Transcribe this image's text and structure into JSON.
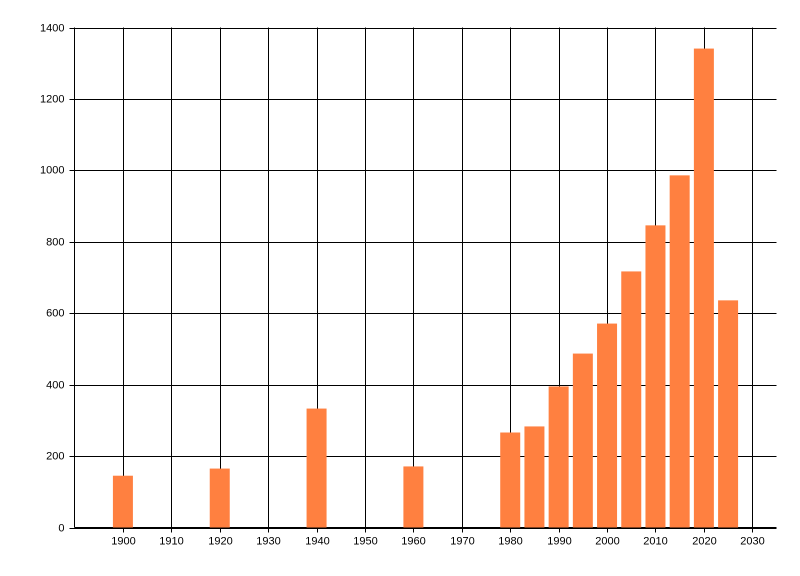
{
  "chart_data": {
    "type": "bar",
    "x": [
      1900,
      1920,
      1940,
      1960,
      1980,
      1985,
      1990,
      1995,
      2000,
      2005,
      2010,
      2015,
      2020,
      2025
    ],
    "values": [
      145,
      165,
      333,
      171,
      266,
      283,
      395,
      487,
      571,
      717,
      846,
      986,
      1341,
      636
    ],
    "color": "#ff8040",
    "xlim": [
      1890,
      2035
    ],
    "xticks": [
      1900,
      1910,
      1920,
      1930,
      1940,
      1950,
      1960,
      1970,
      1980,
      1990,
      2000,
      2010,
      2020,
      2030
    ],
    "ylim": [
      0,
      1400
    ],
    "yticks": [
      0,
      200,
      400,
      600,
      800,
      1000,
      1200,
      1400
    ],
    "grid": true
  }
}
